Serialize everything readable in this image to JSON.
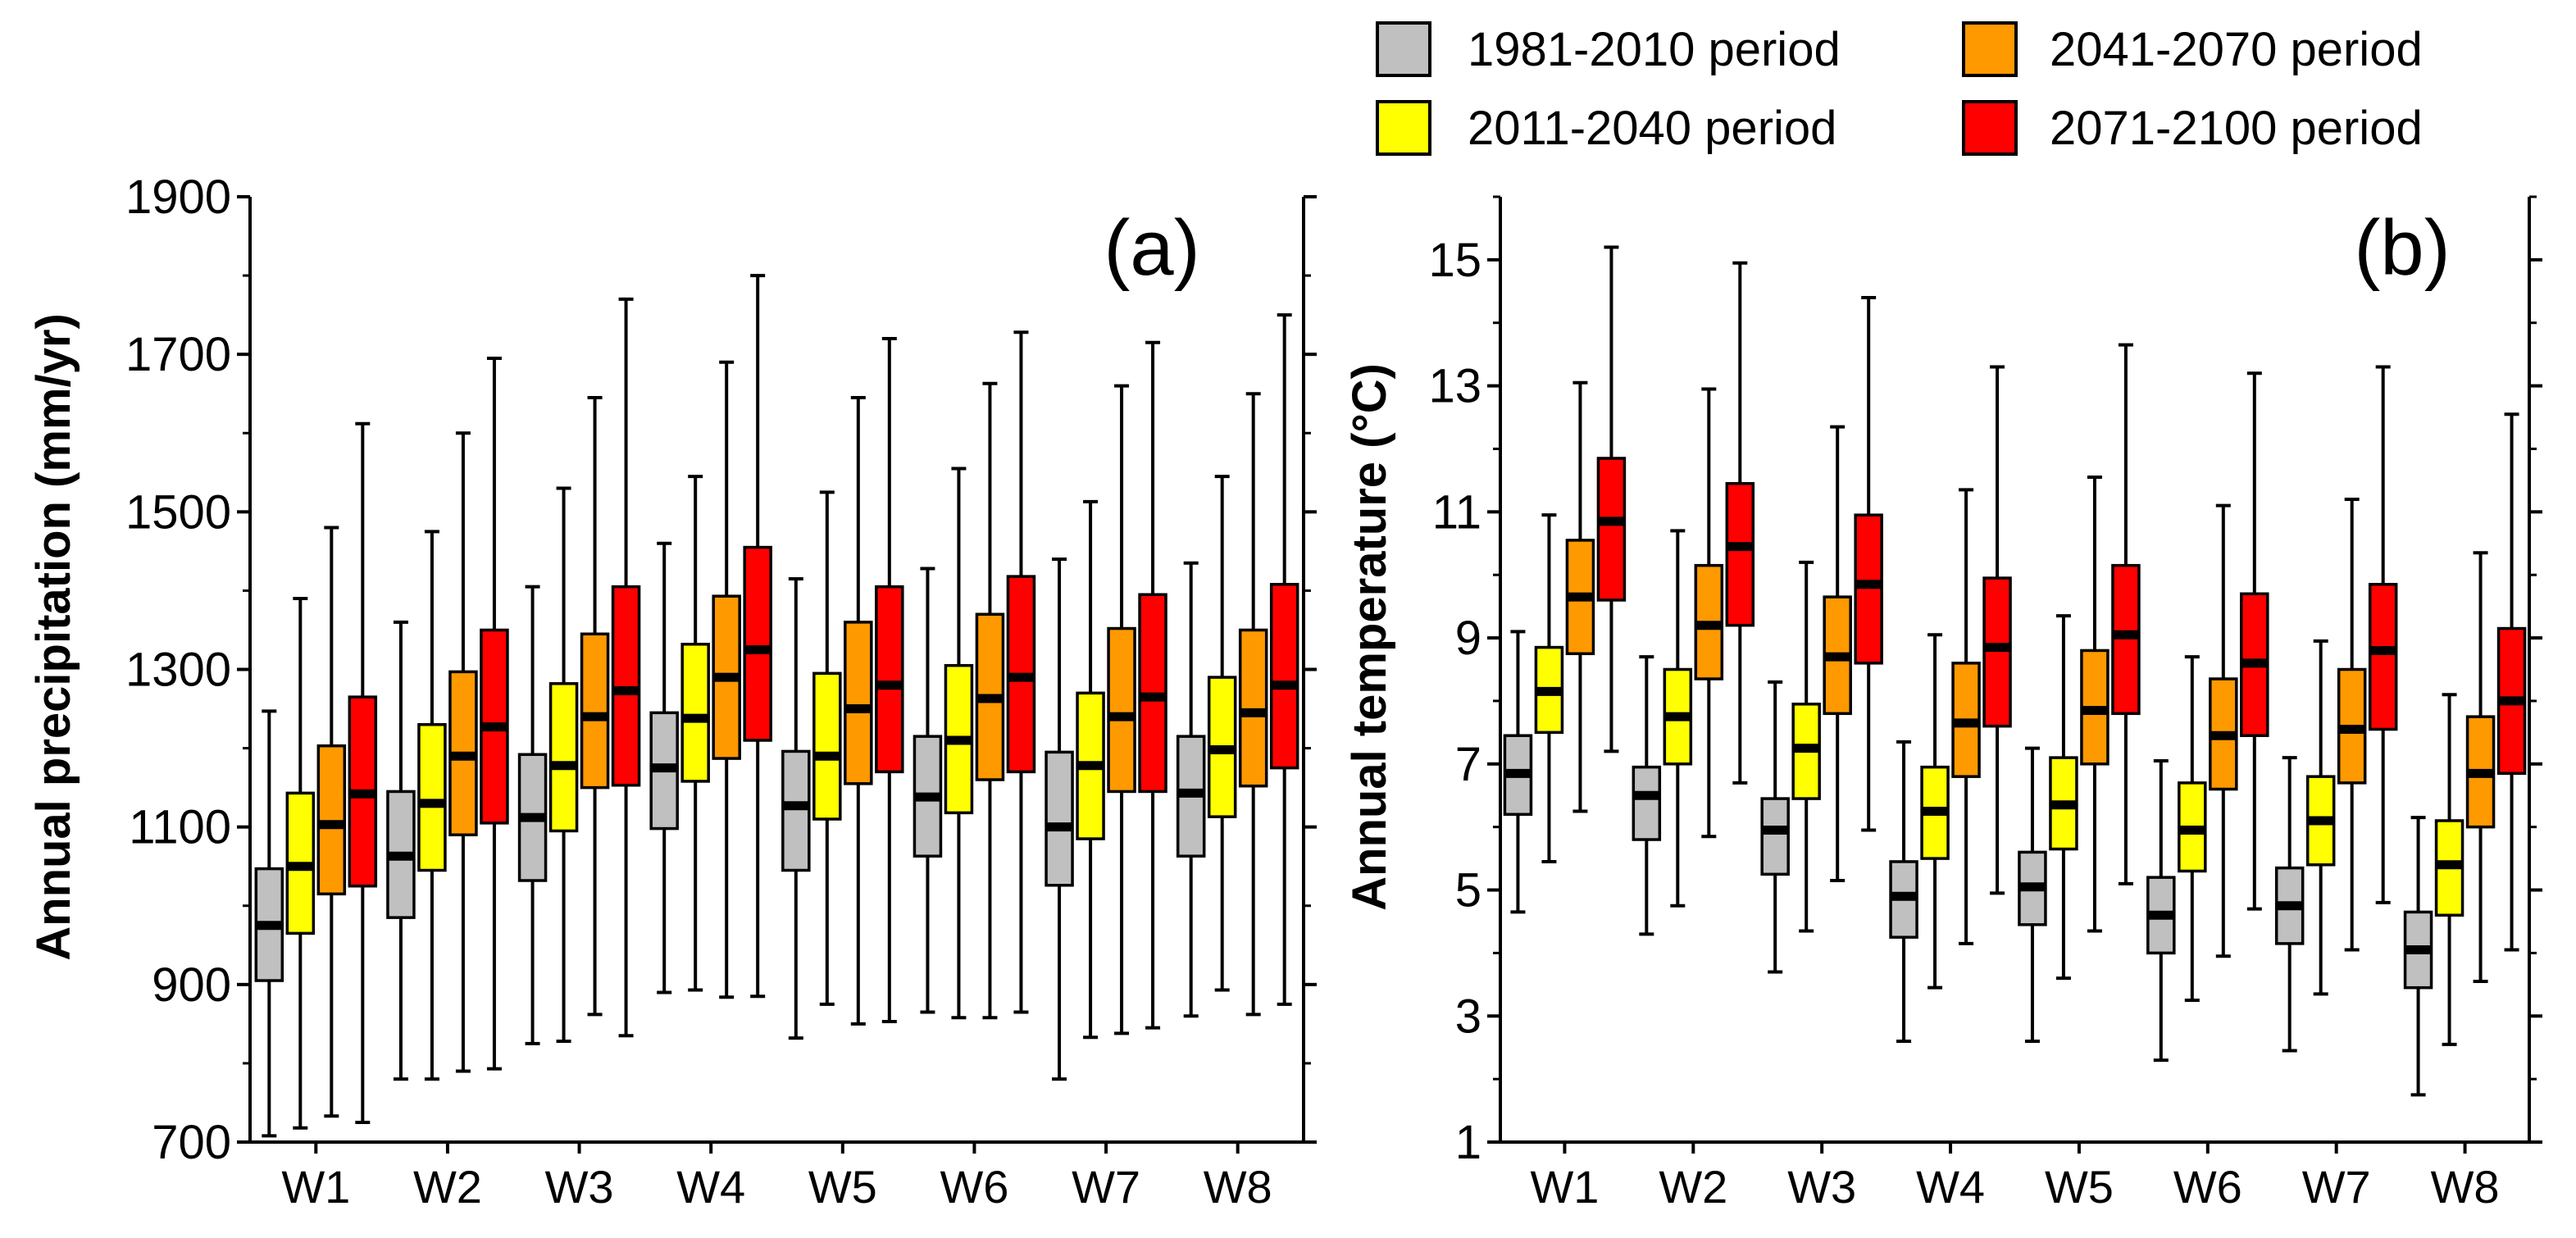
{
  "legend": {
    "items": [
      {
        "label": "1981-2010 period",
        "color": "#c0c0c0"
      },
      {
        "label": "2011-2040 period",
        "color": "#ffff00"
      },
      {
        "label": "2041-2070 period",
        "color": "#ff9900"
      },
      {
        "label": "2071-2100 period",
        "color": "#ff0000"
      }
    ]
  },
  "chart_data": [
    {
      "type": "boxplot",
      "panel_label": "(a)",
      "ylabel": "Annual precipitation (mm/yr)",
      "xlabel": "",
      "ylim": [
        700,
        1900
      ],
      "yticks": [
        "700",
        "900",
        "1100",
        "1300",
        "1500",
        "1700",
        "1900"
      ],
      "categories": [
        "W1",
        "W2",
        "W3",
        "W4",
        "W5",
        "W6",
        "W7",
        "W8"
      ],
      "series": [
        {
          "name": "1981-2010 period",
          "color": "#c0c0c0",
          "boxes": [
            {
              "min": 708,
              "q1": 905,
              "median": 975,
              "q3": 1047,
              "max": 1247
            },
            {
              "min": 780,
              "q1": 985,
              "median": 1063,
              "q3": 1145,
              "max": 1360
            },
            {
              "min": 825,
              "q1": 1032,
              "median": 1112,
              "q3": 1192,
              "max": 1405
            },
            {
              "min": 890,
              "q1": 1098,
              "median": 1175,
              "q3": 1245,
              "max": 1460
            },
            {
              "min": 832,
              "q1": 1045,
              "median": 1127,
              "q3": 1196,
              "max": 1415
            },
            {
              "min": 865,
              "q1": 1063,
              "median": 1138,
              "q3": 1215,
              "max": 1428
            },
            {
              "min": 780,
              "q1": 1026,
              "median": 1100,
              "q3": 1195,
              "max": 1440
            },
            {
              "min": 860,
              "q1": 1063,
              "median": 1143,
              "q3": 1215,
              "max": 1435
            }
          ]
        },
        {
          "name": "2011-2040 period",
          "color": "#ffff00",
          "boxes": [
            {
              "min": 718,
              "q1": 965,
              "median": 1050,
              "q3": 1143,
              "max": 1390
            },
            {
              "min": 780,
              "q1": 1045,
              "median": 1130,
              "q3": 1230,
              "max": 1475
            },
            {
              "min": 828,
              "q1": 1095,
              "median": 1178,
              "q3": 1282,
              "max": 1530
            },
            {
              "min": 893,
              "q1": 1158,
              "median": 1238,
              "q3": 1332,
              "max": 1545
            },
            {
              "min": 875,
              "q1": 1110,
              "median": 1190,
              "q3": 1295,
              "max": 1525
            },
            {
              "min": 858,
              "q1": 1118,
              "median": 1210,
              "q3": 1305,
              "max": 1555
            },
            {
              "min": 833,
              "q1": 1085,
              "median": 1178,
              "q3": 1270,
              "max": 1513
            },
            {
              "min": 893,
              "q1": 1113,
              "median": 1198,
              "q3": 1290,
              "max": 1545
            }
          ]
        },
        {
          "name": "2041-2070 period",
          "color": "#ff9900",
          "boxes": [
            {
              "min": 733,
              "q1": 1015,
              "median": 1103,
              "q3": 1203,
              "max": 1480
            },
            {
              "min": 790,
              "q1": 1090,
              "median": 1190,
              "q3": 1297,
              "max": 1600
            },
            {
              "min": 862,
              "q1": 1150,
              "median": 1240,
              "q3": 1345,
              "max": 1645
            },
            {
              "min": 884,
              "q1": 1187,
              "median": 1290,
              "q3": 1393,
              "max": 1690
            },
            {
              "min": 850,
              "q1": 1155,
              "median": 1250,
              "q3": 1360,
              "max": 1645
            },
            {
              "min": 858,
              "q1": 1160,
              "median": 1263,
              "q3": 1370,
              "max": 1663
            },
            {
              "min": 838,
              "q1": 1145,
              "median": 1240,
              "q3": 1352,
              "max": 1660
            },
            {
              "min": 862,
              "q1": 1152,
              "median": 1245,
              "q3": 1350,
              "max": 1650
            }
          ]
        },
        {
          "name": "2071-2100 period",
          "color": "#ff0000",
          "boxes": [
            {
              "min": 725,
              "q1": 1025,
              "median": 1142,
              "q3": 1265,
              "max": 1612
            },
            {
              "min": 793,
              "q1": 1105,
              "median": 1227,
              "q3": 1350,
              "max": 1695
            },
            {
              "min": 835,
              "q1": 1153,
              "median": 1273,
              "q3": 1405,
              "max": 1770
            },
            {
              "min": 885,
              "q1": 1210,
              "median": 1325,
              "q3": 1455,
              "max": 1800
            },
            {
              "min": 853,
              "q1": 1170,
              "median": 1280,
              "q3": 1405,
              "max": 1720
            },
            {
              "min": 865,
              "q1": 1170,
              "median": 1290,
              "q3": 1418,
              "max": 1728
            },
            {
              "min": 845,
              "q1": 1145,
              "median": 1265,
              "q3": 1395,
              "max": 1715
            },
            {
              "min": 875,
              "q1": 1175,
              "median": 1280,
              "q3": 1408,
              "max": 1750
            }
          ]
        }
      ]
    },
    {
      "type": "boxplot",
      "panel_label": "(b)",
      "ylabel": "Annual temperature (°C)",
      "xlabel": "",
      "ylim": [
        1,
        16
      ],
      "yticks": [
        "1",
        "3",
        "5",
        "7",
        "9",
        "11",
        "13",
        "15"
      ],
      "categories": [
        "W1",
        "W2",
        "W3",
        "W4",
        "W5",
        "W6",
        "W7",
        "W8"
      ],
      "series": [
        {
          "name": "1981-2010 period",
          "color": "#c0c0c0",
          "boxes": [
            {
              "min": 4.65,
              "q1": 6.2,
              "median": 6.85,
              "q3": 7.45,
              "max": 9.1
            },
            {
              "min": 4.3,
              "q1": 5.8,
              "median": 6.5,
              "q3": 6.95,
              "max": 8.7
            },
            {
              "min": 3.7,
              "q1": 5.25,
              "median": 5.95,
              "q3": 6.45,
              "max": 8.3
            },
            {
              "min": 2.6,
              "q1": 4.25,
              "median": 4.9,
              "q3": 5.45,
              "max": 7.35
            },
            {
              "min": 2.6,
              "q1": 4.45,
              "median": 5.05,
              "q3": 5.6,
              "max": 7.25
            },
            {
              "min": 2.3,
              "q1": 4.0,
              "median": 4.6,
              "q3": 5.2,
              "max": 7.05
            },
            {
              "min": 2.45,
              "q1": 4.15,
              "median": 4.75,
              "q3": 5.35,
              "max": 7.1
            },
            {
              "min": 1.75,
              "q1": 3.45,
              "median": 4.05,
              "q3": 4.65,
              "max": 6.15
            }
          ]
        },
        {
          "name": "2011-2040 period",
          "color": "#ffff00",
          "boxes": [
            {
              "min": 5.45,
              "q1": 7.5,
              "median": 8.15,
              "q3": 8.85,
              "max": 10.95
            },
            {
              "min": 4.75,
              "q1": 7.0,
              "median": 7.75,
              "q3": 8.5,
              "max": 10.7
            },
            {
              "min": 4.35,
              "q1": 6.45,
              "median": 7.25,
              "q3": 7.95,
              "max": 10.2
            },
            {
              "min": 3.45,
              "q1": 5.5,
              "median": 6.25,
              "q3": 6.95,
              "max": 9.05
            },
            {
              "min": 3.6,
              "q1": 5.65,
              "median": 6.35,
              "q3": 7.1,
              "max": 9.35
            },
            {
              "min": 3.25,
              "q1": 5.3,
              "median": 5.95,
              "q3": 6.7,
              "max": 8.7
            },
            {
              "min": 3.35,
              "q1": 5.4,
              "median": 6.1,
              "q3": 6.8,
              "max": 8.95
            },
            {
              "min": 2.55,
              "q1": 4.6,
              "median": 5.4,
              "q3": 6.1,
              "max": 8.1
            }
          ]
        },
        {
          "name": "2041-2070 period",
          "color": "#ff9900",
          "boxes": [
            {
              "min": 6.25,
              "q1": 8.75,
              "median": 9.65,
              "q3": 10.55,
              "max": 13.05
            },
            {
              "min": 5.85,
              "q1": 8.35,
              "median": 9.2,
              "q3": 10.15,
              "max": 12.95
            },
            {
              "min": 5.15,
              "q1": 7.8,
              "median": 8.7,
              "q3": 9.65,
              "max": 12.35
            },
            {
              "min": 4.15,
              "q1": 6.8,
              "median": 7.65,
              "q3": 8.6,
              "max": 11.35
            },
            {
              "min": 4.35,
              "q1": 7.0,
              "median": 7.85,
              "q3": 8.8,
              "max": 11.55
            },
            {
              "min": 3.95,
              "q1": 6.6,
              "median": 7.45,
              "q3": 8.35,
              "max": 11.1
            },
            {
              "min": 4.05,
              "q1": 6.7,
              "median": 7.55,
              "q3": 8.5,
              "max": 11.2
            },
            {
              "min": 3.55,
              "q1": 6.0,
              "median": 6.85,
              "q3": 7.75,
              "max": 10.35
            }
          ]
        },
        {
          "name": "2071-2100 period",
          "color": "#ff0000",
          "boxes": [
            {
              "min": 7.2,
              "q1": 9.6,
              "median": 10.85,
              "q3": 11.85,
              "max": 15.2
            },
            {
              "min": 6.7,
              "q1": 9.2,
              "median": 10.45,
              "q3": 11.45,
              "max": 14.95
            },
            {
              "min": 5.95,
              "q1": 8.6,
              "median": 9.85,
              "q3": 10.95,
              "max": 14.4
            },
            {
              "min": 4.95,
              "q1": 7.6,
              "median": 8.85,
              "q3": 9.95,
              "max": 13.3
            },
            {
              "min": 5.1,
              "q1": 7.8,
              "median": 9.05,
              "q3": 10.15,
              "max": 13.65
            },
            {
              "min": 4.7,
              "q1": 7.45,
              "median": 8.6,
              "q3": 9.7,
              "max": 13.2
            },
            {
              "min": 4.8,
              "q1": 7.55,
              "median": 8.8,
              "q3": 9.85,
              "max": 13.3
            },
            {
              "min": 4.05,
              "q1": 6.85,
              "median": 8.0,
              "q3": 9.15,
              "max": 12.55
            }
          ]
        }
      ]
    }
  ]
}
